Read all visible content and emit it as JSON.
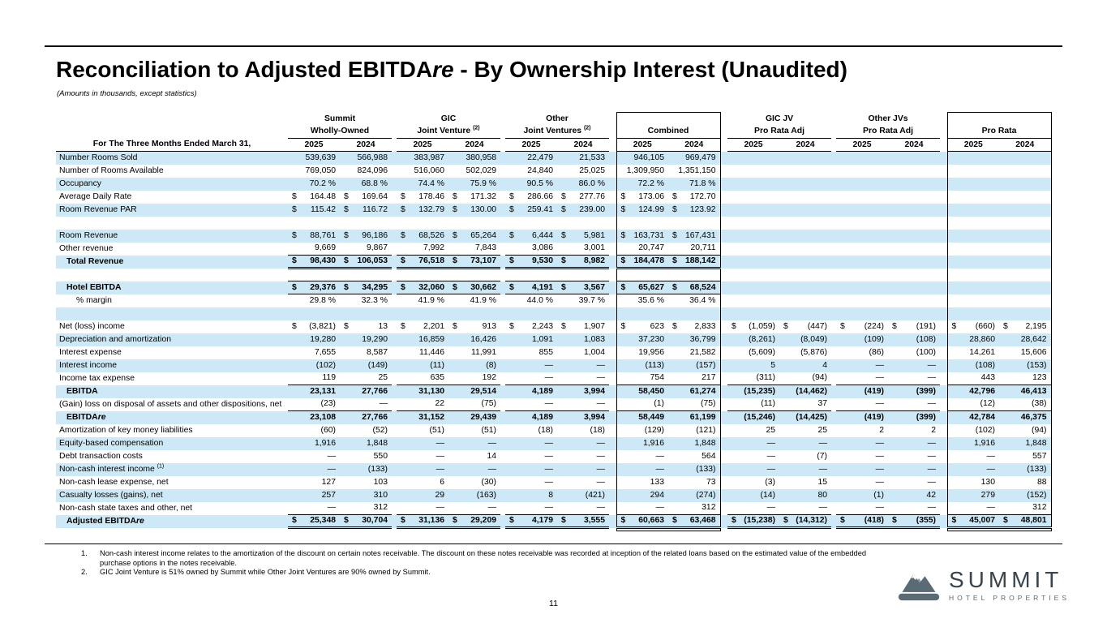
{
  "page": {
    "title_prefix": "Reconciliation to Adjusted EBITDA",
    "title_italic": "re",
    "title_suffix": " - By Ownership Interest (Unaudited)",
    "subtitle": "(Amounts in thousands, except statistics)",
    "page_number": "11"
  },
  "colors": {
    "stripe": "#cde8f6",
    "rule": "#000000",
    "logo": "#5b6b76"
  },
  "table": {
    "row_header": "For The Three Months Ended March 31,",
    "years": [
      "2025",
      "2024"
    ],
    "groups": [
      {
        "line1": "Summit",
        "line2": "Wholly-Owned"
      },
      {
        "line1": "GIC",
        "line2": "Joint Venture",
        "sup": "(2)"
      },
      {
        "line1": "Other",
        "line2": "Joint Ventures",
        "sup": "(2)"
      },
      {
        "line1": "",
        "line2": "Combined",
        "boxed": true
      },
      {
        "line1": "GIC JV",
        "line2": "Pro Rata Adj"
      },
      {
        "line1": "Other JVs",
        "line2": "Pro Rata Adj"
      },
      {
        "line1": "",
        "line2": "Pro Rata",
        "boxed": true
      }
    ],
    "rows": [
      {
        "label": "Number Rooms Sold",
        "values": [
          "539,639",
          "566,988",
          "383,987",
          "380,958",
          "22,479",
          "21,533",
          "946,105",
          "969,479",
          "",
          "",
          "",
          "",
          "",
          ""
        ]
      },
      {
        "label": "Number of Rooms Available",
        "values": [
          "769,050",
          "824,096",
          "516,060",
          "502,029",
          "24,840",
          "25,025",
          "1,309,950",
          "1,351,150",
          "",
          "",
          "",
          "",
          "",
          ""
        ]
      },
      {
        "label": "Occupancy",
        "values": [
          "70.2 %",
          "68.8 %",
          "74.4 %",
          "75.9 %",
          "90.5 %",
          "86.0 %",
          "72.2 %",
          "71.8 %",
          "",
          "",
          "",
          "",
          "",
          ""
        ]
      },
      {
        "label": "Average Daily Rate",
        "values": [
          "$ 164.48",
          "$ 169.64",
          "$ 178.46",
          "$ 171.32",
          "$ 286.66",
          "$ 277.76",
          "$ 173.06",
          "$ 172.70",
          "",
          "",
          "",
          "",
          "",
          ""
        ]
      },
      {
        "label": "Room Revenue PAR",
        "values": [
          "$ 115.42",
          "$ 116.72",
          "$ 132.79",
          "$ 130.00",
          "$ 259.41",
          "$ 239.00",
          "$ 124.99",
          "$ 123.92",
          "",
          "",
          "",
          "",
          "",
          ""
        ]
      },
      {
        "blank": true,
        "label": "",
        "values": []
      },
      {
        "label": "Room Revenue",
        "values": [
          "$ 88,761",
          "$ 96,186",
          "$ 68,526",
          "$ 65,264",
          "$ 6,444",
          "$ 5,981",
          "$ 163,731",
          "$ 167,431",
          "",
          "",
          "",
          "",
          "",
          ""
        ]
      },
      {
        "label": "Other revenue",
        "values": [
          "9,669",
          "9,867",
          "7,992",
          "7,843",
          "3,086",
          "3,001",
          "20,747",
          "20,711",
          "",
          "",
          "",
          "",
          "",
          ""
        ]
      },
      {
        "label": "Total Revenue",
        "bold": true,
        "indent": 1,
        "top": true,
        "bottom": "double",
        "values": [
          "$ 98,430",
          "$ 106,053",
          "$ 76,518",
          "$ 73,107",
          "$ 9,530",
          "$ 8,982",
          "$ 184,478",
          "$ 188,142",
          "",
          "",
          "",
          "",
          "",
          ""
        ]
      },
      {
        "blank": true,
        "label": "",
        "values": []
      },
      {
        "label": "Hotel EBITDA",
        "bold": true,
        "indent": 1,
        "top": true,
        "bottom": "single",
        "values": [
          "$ 29,376",
          "$ 34,295",
          "$ 32,060",
          "$ 30,662",
          "$ 4,191",
          "$ 3,567",
          "$ 65,627",
          "$ 68,524",
          "",
          "",
          "",
          "",
          "",
          ""
        ]
      },
      {
        "label": "% margin",
        "indent": 2,
        "values": [
          "29.8 %",
          "32.3 %",
          "41.9 %",
          "41.9 %",
          "44.0 %",
          "39.7 %",
          "35.6 %",
          "36.4 %",
          "",
          "",
          "",
          "",
          "",
          ""
        ]
      },
      {
        "blank": true,
        "label": "",
        "values": []
      },
      {
        "label": "Net (loss) income",
        "values": [
          "$ (3,821)",
          "$ 13",
          "$ 2,201",
          "$ 913",
          "$ 2,243",
          "$ 1,907",
          "$ 623",
          "$ 2,833",
          "$ (1,059)",
          "$ (447)",
          "$ (224)",
          "$ (191)",
          "$ (660)",
          "$ 2,195"
        ]
      },
      {
        "label": "Depreciation and amortization",
        "values": [
          "19,280",
          "19,290",
          "16,859",
          "16,426",
          "1,091",
          "1,083",
          "37,230",
          "36,799",
          "(8,261)",
          "(8,049)",
          "(109)",
          "(108)",
          "28,860",
          "28,642"
        ]
      },
      {
        "label": "Interest expense",
        "values": [
          "7,655",
          "8,587",
          "11,446",
          "11,991",
          "855",
          "1,004",
          "19,956",
          "21,582",
          "(5,609)",
          "(5,876)",
          "(86)",
          "(100)",
          "14,261",
          "15,606"
        ]
      },
      {
        "label": "Interest income",
        "values": [
          "(102)",
          "(149)",
          "(11)",
          "(8)",
          "—",
          "—",
          "(113)",
          "(157)",
          "5",
          "4",
          "—",
          "—",
          "(108)",
          "(153)"
        ]
      },
      {
        "label": "Income tax expense",
        "values": [
          "119",
          "25",
          "635",
          "192",
          "—",
          "—",
          "754",
          "217",
          "(311)",
          "(94)",
          "—",
          "—",
          "443",
          "123"
        ]
      },
      {
        "label": "EBITDA",
        "bold": true,
        "indent": 1,
        "top": true,
        "values": [
          "23,131",
          "27,766",
          "31,130",
          "29,514",
          "4,189",
          "3,994",
          "58,450",
          "61,274",
          "(15,235)",
          "(14,462)",
          "(419)",
          "(399)",
          "42,796",
          "46,413"
        ]
      },
      {
        "label": "(Gain) loss on disposal of assets and other dispositions, net",
        "values": [
          "(23)",
          "—",
          "22",
          "(75)",
          "—",
          "—",
          "(1)",
          "(75)",
          "(11)",
          "37",
          "—",
          "—",
          "(12)",
          "(38)"
        ]
      },
      {
        "label": "EBITDA",
        "it": "re",
        "bold": true,
        "indent": 1,
        "top": true,
        "values": [
          "23,108",
          "27,766",
          "31,152",
          "29,439",
          "4,189",
          "3,994",
          "58,449",
          "61,199",
          "(15,246)",
          "(14,425)",
          "(419)",
          "(399)",
          "42,784",
          "46,375"
        ]
      },
      {
        "label": "Amortization of key money liabilities",
        "values": [
          "(60)",
          "(52)",
          "(51)",
          "(51)",
          "(18)",
          "(18)",
          "(129)",
          "(121)",
          "25",
          "25",
          "2",
          "2",
          "(102)",
          "(94)"
        ]
      },
      {
        "label": "Equity-based compensation",
        "values": [
          "1,916",
          "1,848",
          "—",
          "—",
          "—",
          "—",
          "1,916",
          "1,848",
          "—",
          "—",
          "—",
          "—",
          "1,916",
          "1,848"
        ]
      },
      {
        "label": "Debt transaction costs",
        "values": [
          "—",
          "550",
          "—",
          "14",
          "—",
          "—",
          "—",
          "564",
          "—",
          "(7)",
          "—",
          "—",
          "—",
          "557"
        ]
      },
      {
        "label": "Non-cash interest income",
        "sup": "(1)",
        "values": [
          "—",
          "(133)",
          "—",
          "—",
          "—",
          "—",
          "—",
          "(133)",
          "—",
          "—",
          "—",
          "—",
          "—",
          "(133)"
        ]
      },
      {
        "label": "Non-cash lease expense, net",
        "values": [
          "127",
          "103",
          "6",
          "(30)",
          "—",
          "—",
          "133",
          "73",
          "(3)",
          "15",
          "—",
          "—",
          "130",
          "88"
        ]
      },
      {
        "label": "Casualty losses (gains), net",
        "values": [
          "257",
          "310",
          "29",
          "(163)",
          "8",
          "(421)",
          "294",
          "(274)",
          "(14)",
          "80",
          "(1)",
          "42",
          "279",
          "(152)"
        ]
      },
      {
        "label": "Non-cash state taxes and other, net",
        "values": [
          "—",
          "312",
          "—",
          "—",
          "—",
          "—",
          "—",
          "312",
          "—",
          "—",
          "—",
          "—",
          "—",
          "312"
        ]
      },
      {
        "label": "Adjusted EBITDA",
        "it": "re",
        "bold": true,
        "indent": 1,
        "top": true,
        "bottom": "double",
        "values": [
          "$ 25,348",
          "$ 30,704",
          "$ 31,136",
          "$ 29,209",
          "$ 4,179",
          "$ 3,555",
          "$ 60,663",
          "$ 63,468",
          "$ (15,238)",
          "$ (14,312)",
          "$ (418)",
          "$ (355)",
          "$ 45,007",
          "$ 48,801"
        ]
      }
    ]
  },
  "footnotes": [
    {
      "num": "1.",
      "text": "Non-cash interest income relates to the amortization of the discount on certain notes receivable. The discount on these notes receivable was recorded at inception of the related loans based on the estimated value of the embedded purchase options in the notes receivable."
    },
    {
      "num": "2.",
      "text": "GIC Joint Venture is 51% owned by Summit while Other Joint Ventures are 90% owned by Summit."
    }
  ],
  "logo": {
    "name": "SUMMIT",
    "tagline": "HOTEL PROPERTIES"
  }
}
